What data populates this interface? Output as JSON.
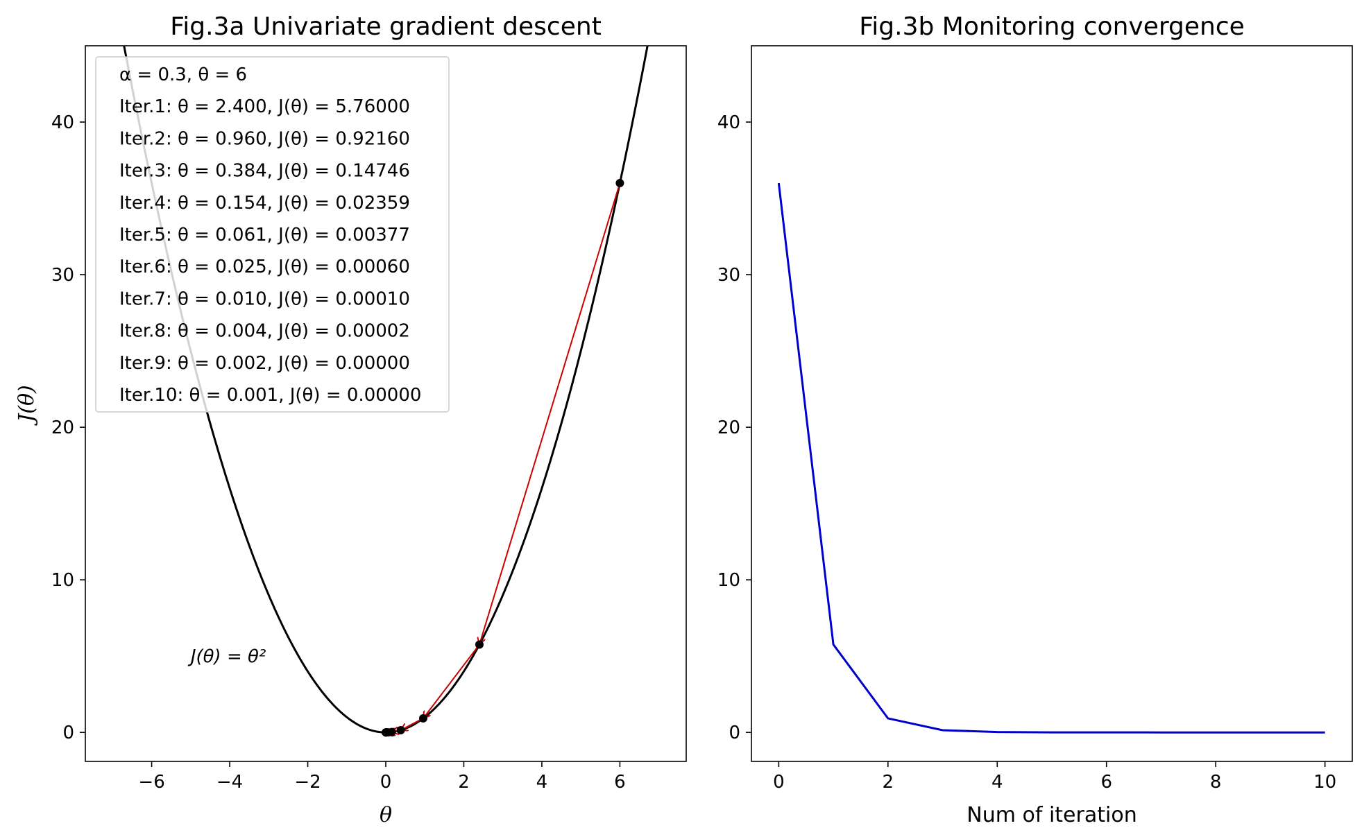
{
  "colors": {
    "curve": "#000000",
    "arrow": "#cc0000",
    "points": "#000000",
    "convergence": "#0000cc",
    "legend_edge": "#cccccc"
  },
  "chart_data": [
    {
      "type": "line",
      "title": "Fig.3a Univariate gradient descent",
      "xlabel": "θ",
      "ylabel": "J(θ)",
      "xlim": [
        -7.7,
        7.7
      ],
      "ylim": [
        -1.9,
        45
      ],
      "x_ticks": [
        -6,
        -4,
        -2,
        0,
        2,
        4,
        6
      ],
      "y_ticks": [
        0,
        10,
        20,
        30,
        40
      ],
      "x_tick_labels": [
        "−6",
        "−4",
        "−2",
        "0",
        "2",
        "4",
        "6"
      ],
      "y_tick_labels": [
        "0",
        "10",
        "20",
        "30",
        "40"
      ],
      "curve": {
        "function": "theta^2",
        "x_range": [
          -7.7,
          7.7
        ]
      },
      "curve_annotation": {
        "text": "J(θ) = θ²",
        "x": -5.0,
        "y": 5.0
      },
      "descent_path": {
        "theta": [
          6,
          2.4,
          0.96,
          0.384,
          0.1536,
          0.06144,
          0.024576,
          0.0098304,
          0.00393216,
          0.001572864,
          0.0006291456
        ],
        "J": [
          36,
          5.76,
          0.9216,
          0.147456,
          0.02359296,
          0.0037748736,
          0.000603979776,
          9.66367641e-05,
          1.54618822e-05,
          2.47390116e-06,
          3.95824186e-07
        ]
      },
      "legend": {
        "placement": "upper-left",
        "header": "α = 0.3, θ = 6",
        "entries": [
          "Iter.1: θ = 2.400,  J(θ) = 5.76000",
          "Iter.2: θ = 0.960,  J(θ) = 0.92160",
          "Iter.3: θ = 0.384,  J(θ) = 0.14746",
          "Iter.4: θ = 0.154,  J(θ) = 0.02359",
          "Iter.5: θ = 0.061,  J(θ) = 0.00377",
          "Iter.6: θ = 0.025,  J(θ) = 0.00060",
          "Iter.7: θ = 0.010,  J(θ) = 0.00010",
          "Iter.8: θ = 0.004,  J(θ) = 0.00002",
          "Iter.9: θ = 0.002,  J(θ) = 0.00000",
          "Iter.10: θ = 0.001,  J(θ) = 0.00000"
        ]
      }
    },
    {
      "type": "line",
      "title": "Fig.3b Monitoring convergence",
      "xlabel": "Num of iteration",
      "ylabel": "",
      "xlim": [
        -0.5,
        10.5
      ],
      "ylim": [
        -1.9,
        45
      ],
      "x_ticks": [
        0,
        2,
        4,
        6,
        8,
        10
      ],
      "y_ticks": [
        0,
        10,
        20,
        30,
        40
      ],
      "x_tick_labels": [
        "0",
        "2",
        "4",
        "6",
        "8",
        "10"
      ],
      "y_tick_labels": [
        "0",
        "10",
        "20",
        "30",
        "40"
      ],
      "series": [
        {
          "x": [
            0,
            1,
            2,
            3,
            4,
            5,
            6,
            7,
            8,
            9,
            10
          ],
          "values": [
            36,
            5.76,
            0.9216,
            0.147456,
            0.02359296,
            0.0037748736,
            0.000603979776,
            9.66367641e-05,
            1.54618822e-05,
            2.47390116e-06,
            3.95824186e-07
          ]
        }
      ]
    }
  ]
}
